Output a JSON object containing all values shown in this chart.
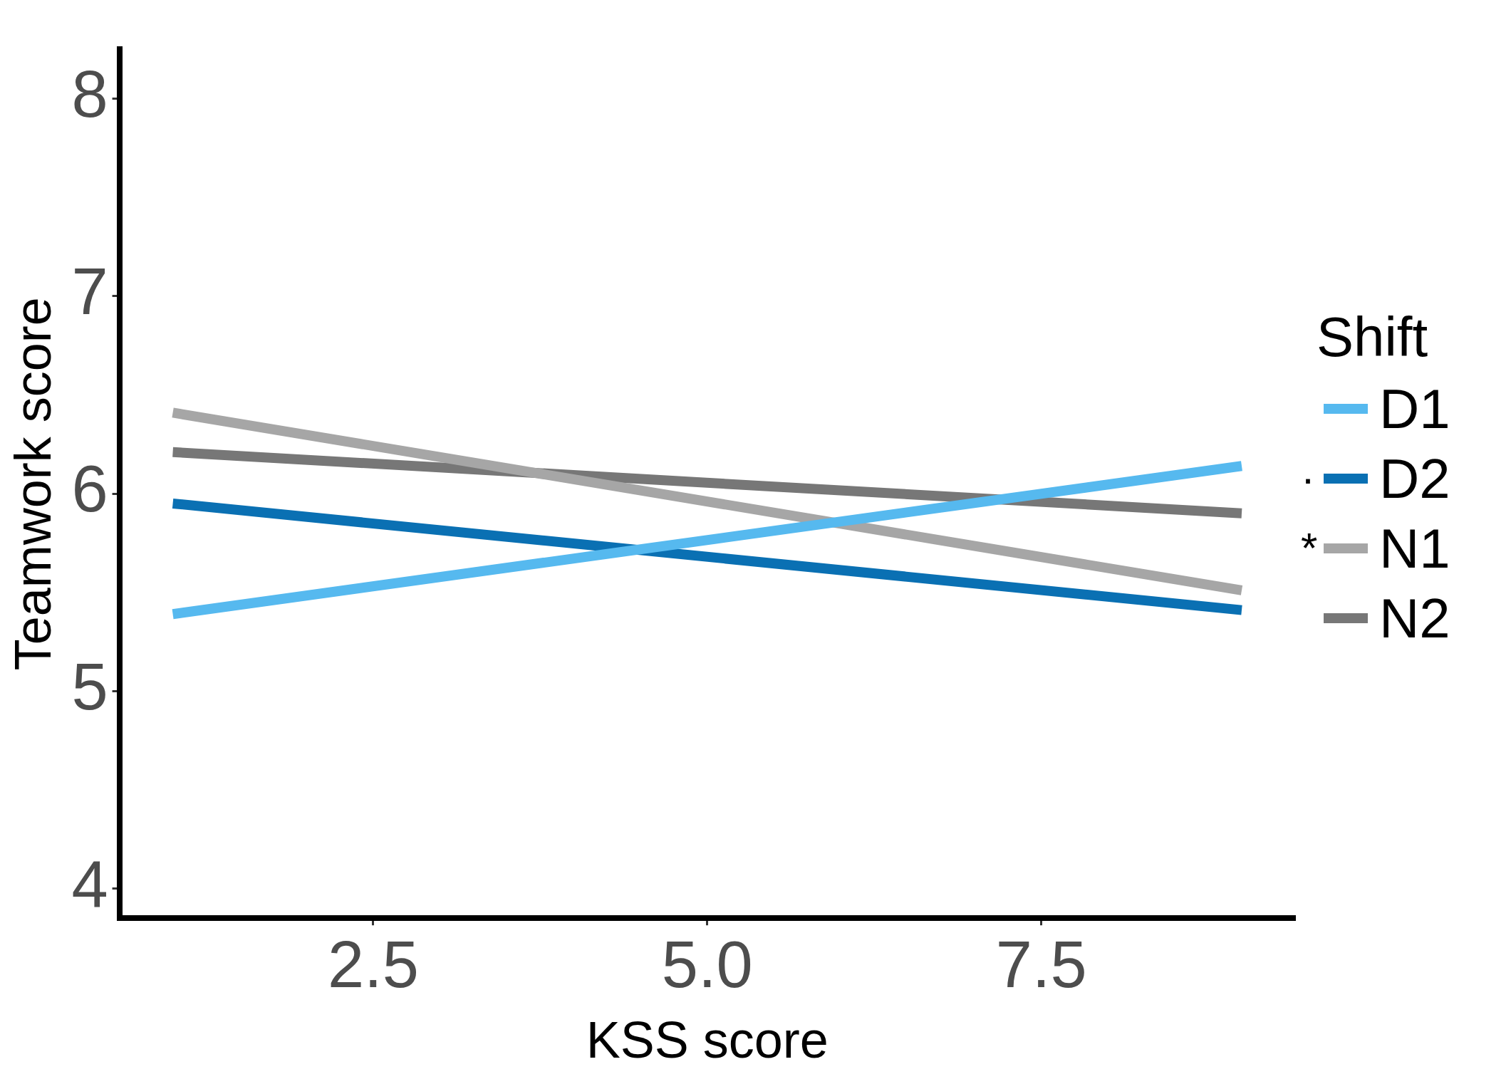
{
  "chart_data": {
    "type": "line",
    "xlabel": "KSS score",
    "ylabel": "Teamwork score",
    "legend_title": "Shift",
    "legend": "right",
    "grid": false,
    "marker": "none",
    "line_style": "solid",
    "x": [
      1,
      9
    ],
    "xlim": [
      0.6,
      9.4
    ],
    "xticks": [
      {
        "value": 2.5,
        "label": "2.5"
      },
      {
        "value": 5,
        "label": "5.0"
      },
      {
        "value": 7.5,
        "label": "7.5"
      }
    ],
    "ylim": [
      3.85,
      8.25
    ],
    "yticks": [
      4,
      5,
      6,
      7,
      8
    ],
    "series": [
      {
        "name": "D1",
        "color": "#56b9ef",
        "values": [
          5.39,
          6.14
        ]
      },
      {
        "name": "D2",
        "color": "#0a70b3",
        "values": [
          5.95,
          5.41
        ]
      },
      {
        "name": "N1",
        "color": "#a6a6a6",
        "values": [
          6.41,
          5.51
        ]
      },
      {
        "name": "N2",
        "color": "#777777",
        "values": [
          6.21,
          5.9
        ]
      }
    ],
    "annotations": [
      "·",
      "*"
    ]
  }
}
